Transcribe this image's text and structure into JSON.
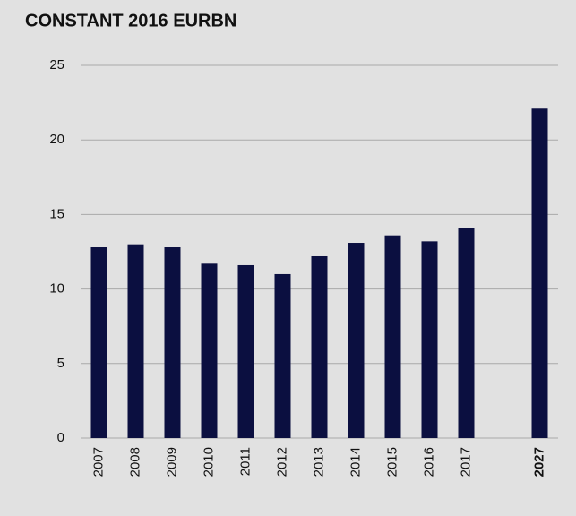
{
  "chart_data": {
    "type": "bar",
    "title": "CONSTANT 2016 EURBN",
    "categories": [
      "2007",
      "2008",
      "2009",
      "2010",
      "2011",
      "2012",
      "2013",
      "2014",
      "2015",
      "2016",
      "2017",
      null,
      "2027"
    ],
    "values": [
      12.8,
      13.0,
      12.8,
      11.7,
      11.6,
      11.0,
      12.2,
      13.1,
      13.6,
      13.2,
      14.1,
      null,
      22.1
    ],
    "color": "#0b0f40",
    "ylim": [
      0,
      25
    ],
    "yticks": [
      0,
      5,
      10,
      15,
      20,
      25
    ],
    "grid": true
  }
}
